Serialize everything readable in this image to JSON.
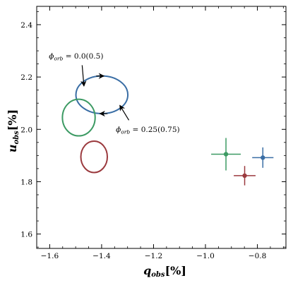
{
  "chart_data": {
    "type": "scatter",
    "title": "",
    "xlabel_main": "q",
    "xlabel_sub": "obs",
    "xlabel_unit": "[%]",
    "ylabel_main": "u",
    "ylabel_sub": "obs",
    "ylabel_unit": "[%]",
    "xlim": [
      -1.65,
      -0.69
    ],
    "ylim": [
      1.545,
      2.47
    ],
    "xticks": [
      -1.6,
      -1.4,
      -1.2,
      -1.0,
      -0.8
    ],
    "xtick_labels": [
      "−1.6",
      "−1.4",
      "−1.2",
      "−1.0",
      "−0.8"
    ],
    "yticks": [
      1.6,
      1.8,
      2.0,
      2.2,
      2.4
    ],
    "ytick_labels": [
      "1.6",
      "1.8",
      "2.0",
      "2.2",
      "2.4"
    ],
    "grid": false,
    "ellipses": [
      {
        "color": "#3a6ea5",
        "center": [
          -1.399,
          2.132
        ],
        "radii": [
          0.1,
          0.072
        ],
        "direction": "counterclockwise"
      },
      {
        "color": "#3c9a63",
        "center": [
          -1.488,
          2.045
        ],
        "radii": [
          0.063,
          0.07
        ]
      },
      {
        "color": "#9b3a3e",
        "center": [
          -1.429,
          1.895
        ],
        "radii": [
          0.051,
          0.06
        ]
      }
    ],
    "points": [
      {
        "color": "#3c9a63",
        "x": -0.921,
        "y": 1.905,
        "xerr": 0.057,
        "yerr": 0.062
      },
      {
        "color": "#9b3a3e",
        "x": -0.849,
        "y": 1.823,
        "xerr": 0.042,
        "yerr": 0.037
      },
      {
        "color": "#3a6ea5",
        "x": -0.779,
        "y": 1.892,
        "xerr": 0.041,
        "yerr": 0.039
      }
    ],
    "annotations": [
      {
        "label": "ϕ",
        "sub": "orb",
        "value": " = 0.0(0.5)",
        "text_at": [
          -1.603,
          2.27
        ],
        "arrow_from": [
          -1.475,
          2.245
        ],
        "arrow_to": [
          -1.468,
          2.165
        ]
      },
      {
        "label": "ϕ",
        "sub": "orb",
        "value": " = 0.25(0.75)",
        "text_at": [
          -1.345,
          1.99
        ],
        "arrow_from": [
          -1.295,
          2.035
        ],
        "arrow_to": [
          -1.33,
          2.092
        ]
      }
    ]
  }
}
